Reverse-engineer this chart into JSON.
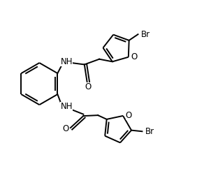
{
  "bg_color": "#ffffff",
  "line_color": "#000000",
  "lw": 1.4,
  "fs": 8.5,
  "xlim": [
    0,
    5.8
  ],
  "ylim": [
    -0.5,
    4.5
  ],
  "figsize": [
    2.92,
    2.45
  ],
  "dpi": 100
}
